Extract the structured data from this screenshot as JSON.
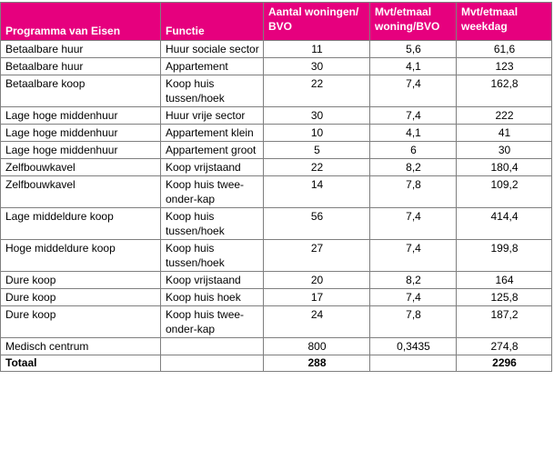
{
  "headers": {
    "programma": "Programma van Eisen",
    "functie": "Functie",
    "aantal": "Aantal woningen/ BVO",
    "mvt_woning": "Mvt/etmaal woning/BVO",
    "mvt_weekdag": "Mvt/etmaal weekdag"
  },
  "rows": [
    {
      "programma": "Betaalbare huur",
      "functie": "Huur sociale sector",
      "aantal": "11",
      "mvt_woning": "5,6",
      "mvt_weekdag": "61,6"
    },
    {
      "programma": "Betaalbare huur",
      "functie": "Appartement",
      "aantal": "30",
      "mvt_woning": "4,1",
      "mvt_weekdag": "123"
    },
    {
      "programma": "Betaalbare koop",
      "functie": "Koop huis tussen/hoek",
      "aantal": "22",
      "mvt_woning": "7,4",
      "mvt_weekdag": "162,8"
    },
    {
      "programma": "Lage hoge middenhuur",
      "functie": "Huur vrije sector",
      "aantal": "30",
      "mvt_woning": "7,4",
      "mvt_weekdag": "222"
    },
    {
      "programma": "Lage hoge middenhuur",
      "functie": "Appartement klein",
      "aantal": "10",
      "mvt_woning": "4,1",
      "mvt_weekdag": "41"
    },
    {
      "programma": "Lage hoge middenhuur",
      "functie": "Appartement groot",
      "aantal": "5",
      "mvt_woning": "6",
      "mvt_weekdag": "30"
    },
    {
      "programma": "Zelfbouwkavel",
      "functie": "Koop vrijstaand",
      "aantal": "22",
      "mvt_woning": "8,2",
      "mvt_weekdag": "180,4"
    },
    {
      "programma": "Zelfbouwkavel",
      "functie": "Koop huis twee-onder-kap",
      "aantal": "14",
      "mvt_woning": "7,8",
      "mvt_weekdag": "109,2"
    },
    {
      "programma": "Lage middeldure koop",
      "functie": "Koop huis tussen/hoek",
      "aantal": "56",
      "mvt_woning": "7,4",
      "mvt_weekdag": "414,4"
    },
    {
      "programma": "Hoge middeldure koop",
      "functie": "Koop huis tussen/hoek",
      "aantal": "27",
      "mvt_woning": "7,4",
      "mvt_weekdag": "199,8"
    },
    {
      "programma": "Dure koop",
      "functie": "Koop vrijstaand",
      "aantal": "20",
      "mvt_woning": "8,2",
      "mvt_weekdag": "164"
    },
    {
      "programma": "Dure koop",
      "functie": "Koop huis hoek",
      "aantal": "17",
      "mvt_woning": "7,4",
      "mvt_weekdag": "125,8"
    },
    {
      "programma": "Dure koop",
      "functie": "Koop huis twee-onder-kap",
      "aantal": "24",
      "mvt_woning": "7,8",
      "mvt_weekdag": "187,2"
    },
    {
      "programma": "Medisch centrum",
      "functie": "",
      "aantal": "800",
      "mvt_woning": "0,3435",
      "mvt_weekdag": "274,8"
    }
  ],
  "total": {
    "label": "Totaal",
    "aantal": "288",
    "mvt_weekdag": "2296"
  },
  "colors": {
    "header_background": "#e6007e",
    "header_text": "#ffffff",
    "border": "#7f7f7f"
  }
}
